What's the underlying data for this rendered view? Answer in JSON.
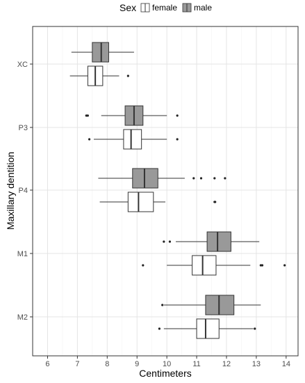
{
  "chart_data": {
    "type": "boxplot",
    "orientation": "horizontal",
    "xlabel": "Centimeters",
    "ylabel": "Maxillary dentition",
    "xlim": [
      5.5,
      14.4
    ],
    "x_ticks": [
      6,
      7,
      8,
      9,
      10,
      11,
      12,
      13,
      14
    ],
    "categories": [
      "XC",
      "P3",
      "P4",
      "M1",
      "M2"
    ],
    "grid": true,
    "legend": {
      "title": "Sex",
      "position": "top",
      "entries": [
        {
          "name": "female",
          "color": "#ffffff"
        },
        {
          "name": "male",
          "color": "#999999"
        }
      ]
    },
    "series": [
      {
        "name": "male",
        "color": "#999999",
        "boxes": [
          {
            "category": "XC",
            "whisker_low": 6.8,
            "q1": 7.5,
            "median": 7.8,
            "q3": 8.05,
            "whisker_high": 8.9,
            "outliers": []
          },
          {
            "category": "P3",
            "whisker_low": 7.8,
            "q1": 8.6,
            "median": 8.9,
            "q3": 9.2,
            "whisker_high": 10.0,
            "outliers": [
              7.3,
              7.35,
              10.35
            ]
          },
          {
            "category": "P4",
            "whisker_low": 7.7,
            "q1": 8.85,
            "median": 9.25,
            "q3": 9.7,
            "whisker_high": 10.6,
            "outliers": [
              10.9,
              11.15,
              11.6,
              11.95
            ]
          },
          {
            "category": "M1",
            "whisker_low": 10.3,
            "q1": 11.35,
            "median": 11.7,
            "q3": 12.15,
            "whisker_high": 13.1,
            "outliers": [
              9.9,
              10.1
            ]
          },
          {
            "category": "M2",
            "whisker_low": 9.9,
            "q1": 11.3,
            "median": 11.75,
            "q3": 12.25,
            "whisker_high": 13.15,
            "outliers": [
              9.85
            ]
          }
        ]
      },
      {
        "name": "female",
        "color": "#ffffff",
        "boxes": [
          {
            "category": "XC",
            "whisker_low": 6.75,
            "q1": 7.35,
            "median": 7.6,
            "q3": 7.85,
            "whisker_high": 8.4,
            "outliers": [
              8.7
            ]
          },
          {
            "category": "P3",
            "whisker_low": 7.55,
            "q1": 8.55,
            "median": 8.8,
            "q3": 9.15,
            "whisker_high": 10.0,
            "outliers": [
              7.4,
              10.35
            ]
          },
          {
            "category": "P4",
            "whisker_low": 7.75,
            "q1": 8.7,
            "median": 9.05,
            "q3": 9.55,
            "whisker_high": 9.95,
            "outliers": [
              11.6,
              11.62
            ]
          },
          {
            "category": "M1",
            "whisker_low": 10.0,
            "q1": 10.85,
            "median": 11.2,
            "q3": 11.65,
            "whisker_high": 12.8,
            "outliers": [
              9.2,
              13.15,
              13.2,
              13.95
            ]
          },
          {
            "category": "M2",
            "whisker_low": 9.9,
            "q1": 11.0,
            "median": 11.3,
            "q3": 11.75,
            "whisker_high": 12.9,
            "outliers": [
              9.75,
              12.95
            ]
          }
        ]
      }
    ]
  }
}
